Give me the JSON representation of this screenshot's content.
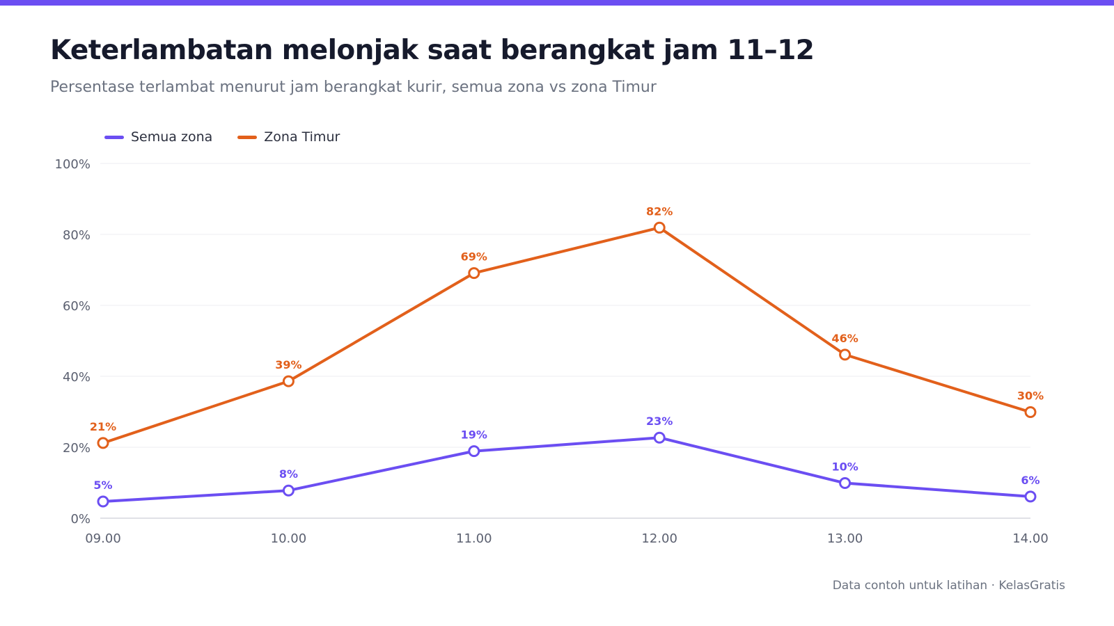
{
  "header": {
    "title": "Keterlambatan melonjak saat berangkat jam 11–12",
    "subtitle": "Persentase terlambat menurut jam berangkat kurir, semua zona vs zona Timur"
  },
  "footer": {
    "note": "Data contoh untuk latihan · KelasGratis"
  },
  "colors": {
    "accent": "#6b4ef2",
    "series_1": "#6b4ef2",
    "series_2": "#e2601b",
    "grid": "#ececf1"
  },
  "chart_data": {
    "type": "line",
    "title": "Keterlambatan melonjak saat berangkat jam 11–12",
    "subtitle": "Persentase terlambat menurut jam berangkat kurir, semua zona vs zona Timur",
    "xlabel": "",
    "ylabel": "",
    "categories": [
      "09.00",
      "10.00",
      "11.00",
      "12.00",
      "13.00",
      "14.00"
    ],
    "ylim": [
      0,
      100
    ],
    "yticks": [
      0,
      20,
      40,
      60,
      80,
      100
    ],
    "ytick_labels": [
      "0%",
      "20%",
      "40%",
      "60%",
      "80%",
      "100%"
    ],
    "grid": true,
    "legend_position": "top-left",
    "series": [
      {
        "name": "Semua zona",
        "color": "#6b4ef2",
        "values": [
          4.7,
          7.8,
          18.9,
          22.7,
          9.9,
          6.1
        ],
        "labels": [
          "5%",
          "8%",
          "19%",
          "23%",
          "10%",
          "6%"
        ]
      },
      {
        "name": "Zona Timur",
        "color": "#e2601b",
        "values": [
          21.2,
          38.6,
          69.1,
          81.9,
          46.1,
          29.9
        ],
        "labels": [
          "21%",
          "39%",
          "69%",
          "82%",
          "46%",
          "30%"
        ]
      }
    ]
  }
}
